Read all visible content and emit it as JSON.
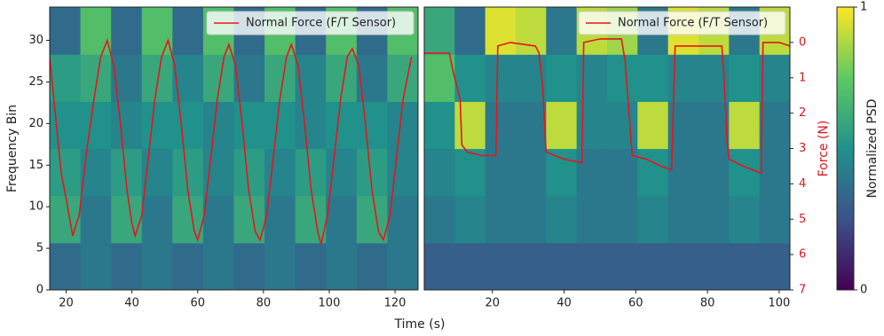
{
  "chart_data": [
    {
      "type": "heatmap",
      "ylabel": "Frequency Bin",
      "xlabel": "Time (s)",
      "xlim": [
        15,
        127
      ],
      "ylim": [
        0,
        34
      ],
      "xticks": [
        20,
        40,
        60,
        80,
        100,
        120
      ],
      "yticks": [
        0,
        5,
        10,
        15,
        20,
        25,
        30
      ],
      "z": [
        [
          0.35,
          0.4,
          0.35,
          0.4,
          0.35,
          0.4,
          0.35,
          0.4,
          0.35,
          0.4,
          0.35,
          0.4
        ],
        [
          0.6,
          0.4,
          0.6,
          0.4,
          0.6,
          0.4,
          0.6,
          0.4,
          0.6,
          0.4,
          0.6,
          0.4
        ],
        [
          0.55,
          0.45,
          0.55,
          0.45,
          0.55,
          0.45,
          0.55,
          0.45,
          0.55,
          0.45,
          0.55,
          0.45
        ],
        [
          0.5,
          0.5,
          0.45,
          0.5,
          0.5,
          0.45,
          0.5,
          0.5,
          0.45,
          0.5,
          0.5,
          0.45
        ],
        [
          0.55,
          0.6,
          0.4,
          0.6,
          0.45,
          0.6,
          0.4,
          0.6,
          0.45,
          0.6,
          0.4,
          0.6
        ],
        [
          0.35,
          0.7,
          0.35,
          0.7,
          0.35,
          0.7,
          0.35,
          0.7,
          0.35,
          0.7,
          0.35,
          0.7
        ]
      ],
      "series": [
        {
          "name": "Normal Force (F/T Sensor)",
          "color": "#e8141c",
          "x": [
            15,
            17,
            18.5,
            20,
            22,
            24,
            26,
            28.5,
            30.5,
            32.5,
            34.5,
            36.5,
            38.5,
            40,
            41,
            43,
            45,
            47,
            49,
            51,
            53,
            55,
            57,
            59,
            60,
            62,
            64,
            66,
            68,
            69.5,
            71.5,
            73.5,
            75.5,
            77.5,
            79,
            81,
            83,
            85,
            87,
            88.5,
            90.5,
            92.5,
            94.5,
            96.5,
            97.5,
            99.5,
            101.5,
            103.5,
            105.5,
            107,
            109,
            111,
            113,
            115,
            116.5,
            118.5,
            120.5,
            122.5,
            125
          ],
          "values": [
            28,
            20,
            14,
            11,
            6.5,
            9,
            16,
            23,
            28,
            30,
            27,
            20,
            12,
            8,
            6.5,
            9,
            16,
            23,
            28,
            30,
            27,
            20,
            12,
            7,
            6,
            9,
            16,
            23,
            28,
            29.5,
            27,
            20,
            12,
            7,
            6,
            9,
            16,
            23,
            28,
            29.5,
            27,
            20,
            12,
            7,
            5.5,
            9,
            16,
            23,
            28,
            29,
            27,
            20,
            12,
            7,
            6,
            9,
            16,
            23,
            28
          ]
        }
      ],
      "legend": "upper right"
    },
    {
      "type": "heatmap",
      "y2label": "Force (N)",
      "xlim": [
        1,
        103
      ],
      "ylim": [
        0,
        34
      ],
      "y2lim": [
        7,
        -1
      ],
      "xticks": [
        20,
        40,
        60,
        80,
        100
      ],
      "y2ticks": [
        0,
        1,
        2,
        3,
        4,
        5,
        6,
        7
      ],
      "z": [
        [
          0.3,
          0.3,
          0.3,
          0.3,
          0.3,
          0.3,
          0.3,
          0.3,
          0.3,
          0.3,
          0.3,
          0.3
        ],
        [
          0.4,
          0.45,
          0.4,
          0.4,
          0.45,
          0.4,
          0.4,
          0.45,
          0.4,
          0.4,
          0.45,
          0.4
        ],
        [
          0.45,
          0.5,
          0.4,
          0.4,
          0.5,
          0.4,
          0.4,
          0.5,
          0.4,
          0.4,
          0.5,
          0.4
        ],
        [
          0.5,
          0.9,
          0.4,
          0.4,
          0.9,
          0.45,
          0.45,
          0.9,
          0.4,
          0.4,
          0.9,
          0.4
        ],
        [
          0.7,
          0.5,
          0.45,
          0.45,
          0.5,
          0.45,
          0.5,
          0.5,
          0.45,
          0.45,
          0.5,
          0.45
        ],
        [
          0.6,
          0.35,
          0.95,
          0.9,
          0.4,
          0.9,
          0.85,
          0.4,
          0.95,
          0.9,
          0.4,
          0.9
        ]
      ],
      "series": [
        {
          "name": "Normal Force (F/T Sensor)",
          "color": "#e8141c",
          "axis": "y2",
          "x": [
            1,
            8,
            9,
            11,
            11.5,
            13,
            17,
            21,
            21.5,
            25,
            32,
            33,
            34,
            35,
            40,
            45,
            45.5,
            50,
            56,
            57,
            58,
            59,
            63,
            67,
            70,
            71,
            78,
            84,
            84.5,
            85.5,
            86,
            90,
            95,
            95.5,
            100,
            103
          ],
          "values": [
            0.3,
            0.3,
            0.8,
            1.6,
            2.9,
            3.1,
            3.2,
            3.2,
            0.1,
            0.0,
            0.1,
            0.3,
            1.2,
            3.1,
            3.3,
            3.4,
            0.0,
            -0.1,
            -0.1,
            0.5,
            1.8,
            3.2,
            3.3,
            3.5,
            3.6,
            0.1,
            0.1,
            0.1,
            0.8,
            2.8,
            3.3,
            3.5,
            3.7,
            0.0,
            0.0,
            0.1
          ]
        }
      ],
      "legend": "upper right",
      "colorbar": {
        "label": "Normalized PSD",
        "colormap": "viridis",
        "lim": [
          0,
          1
        ],
        "ticks": [
          0,
          1
        ]
      }
    }
  ]
}
